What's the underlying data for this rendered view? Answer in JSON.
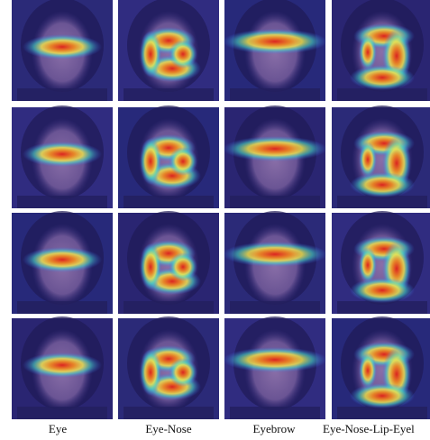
{
  "columns": [
    "Eye",
    "Eye-Nose",
    "Eyebrow",
    "Eye-Nose-Lip-Eyel"
  ]
}
